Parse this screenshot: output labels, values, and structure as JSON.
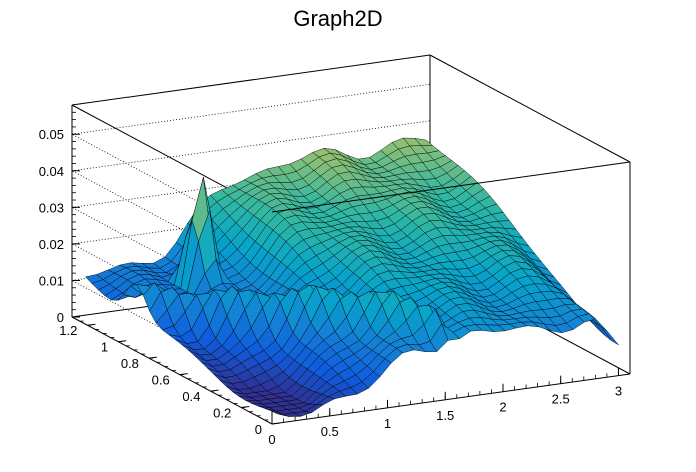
{
  "chart_data": {
    "type": "surface",
    "title": "Graph2D",
    "xlabel": "",
    "ylabel": "",
    "zlabel": "",
    "xlim": [
      0,
      3.1
    ],
    "ylim": [
      0,
      1.3
    ],
    "zlim": [
      0,
      0.058
    ],
    "x_ticks": [
      "0",
      "0.5",
      "1",
      "1.5",
      "2",
      "2.5",
      "3"
    ],
    "y_ticks": [
      "0",
      "0.2",
      "0.4",
      "0.6",
      "0.8",
      "1",
      "1.2"
    ],
    "z_ticks": [
      "0",
      "0.01",
      "0.02",
      "0.03",
      "0.04",
      "0.05"
    ],
    "grid": true,
    "palette": [
      "#352a87",
      "#0f5cdd",
      "#1481d6",
      "#06a4ca",
      "#2eb7a4",
      "#87bf77",
      "#d1bb59",
      "#fec832",
      "#f9fb0e"
    ],
    "surface_features": {
      "peak": {
        "x": 0.7,
        "y": 1.0,
        "z": 0.057
      },
      "plateau_level": 0.022,
      "low_edge_level": 0.008
    }
  }
}
